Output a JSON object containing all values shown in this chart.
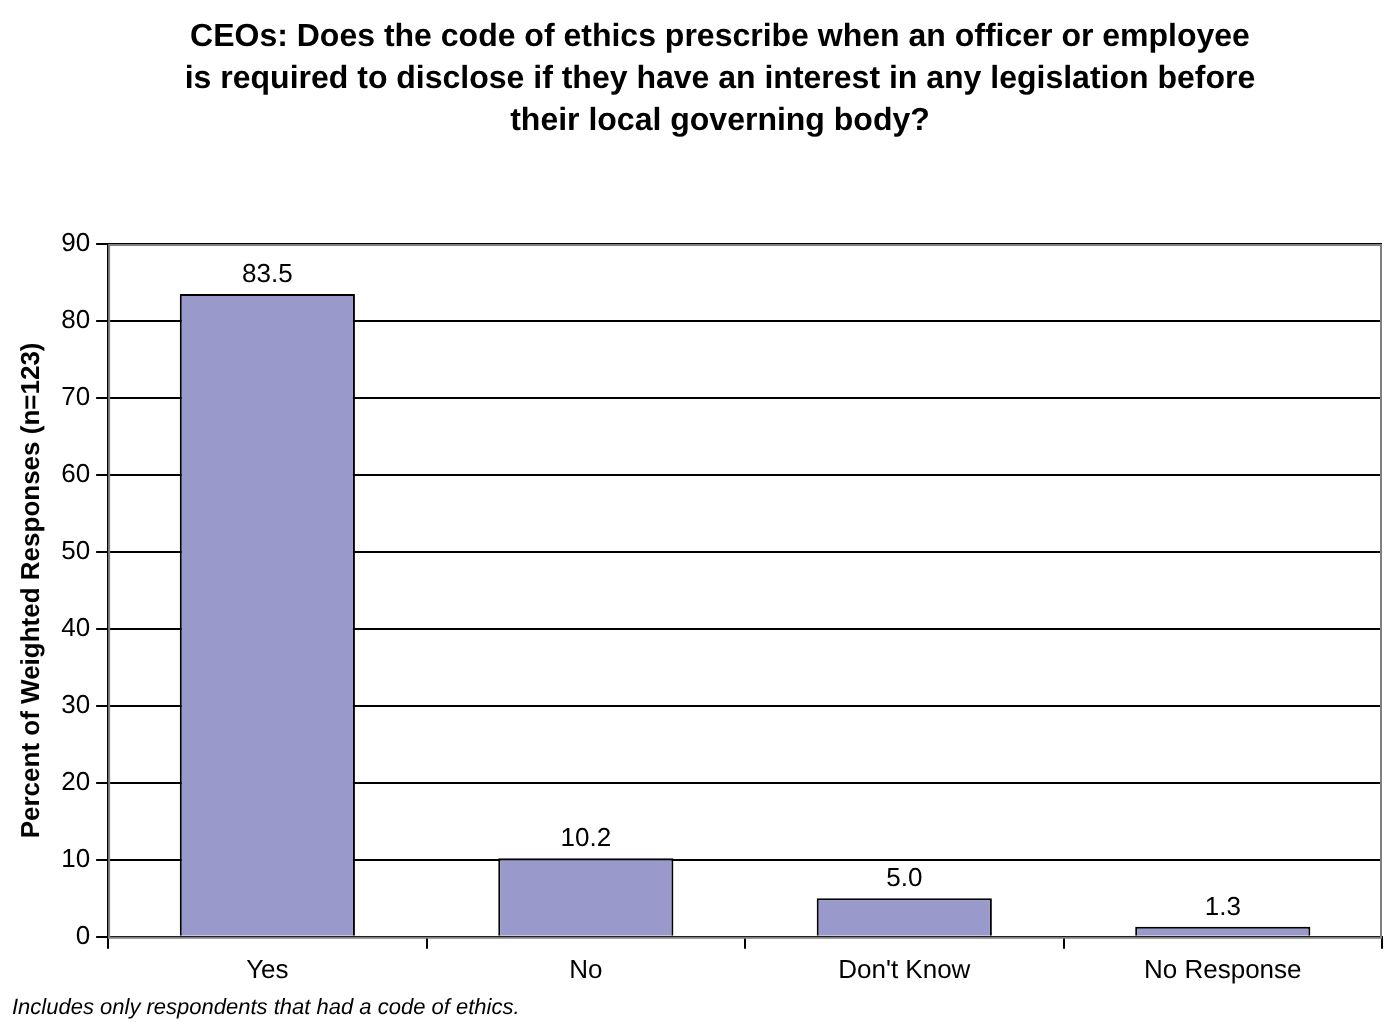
{
  "chart_data": {
    "type": "bar",
    "title": "CEOs: Does the code of ethics prescribe when an officer or employee is required to disclose if they have an interest in any legislation before their local governing body?",
    "ylabel": "Percent of Weighted Responses (n=123)",
    "categories": [
      "Yes",
      "No",
      "Don't Know",
      "No Response"
    ],
    "values": [
      83.5,
      10.2,
      5.0,
      1.3
    ],
    "value_labels": [
      "83.5",
      "10.2",
      "5.0",
      "1.3"
    ],
    "color": "#9999cc",
    "ylim": [
      0,
      90
    ],
    "yticks": [
      0,
      10,
      20,
      30,
      40,
      50,
      60,
      70,
      80,
      90
    ],
    "grid": "y",
    "legend": false,
    "annotations": [
      "Includes only respondents that had a code of ethics."
    ]
  }
}
